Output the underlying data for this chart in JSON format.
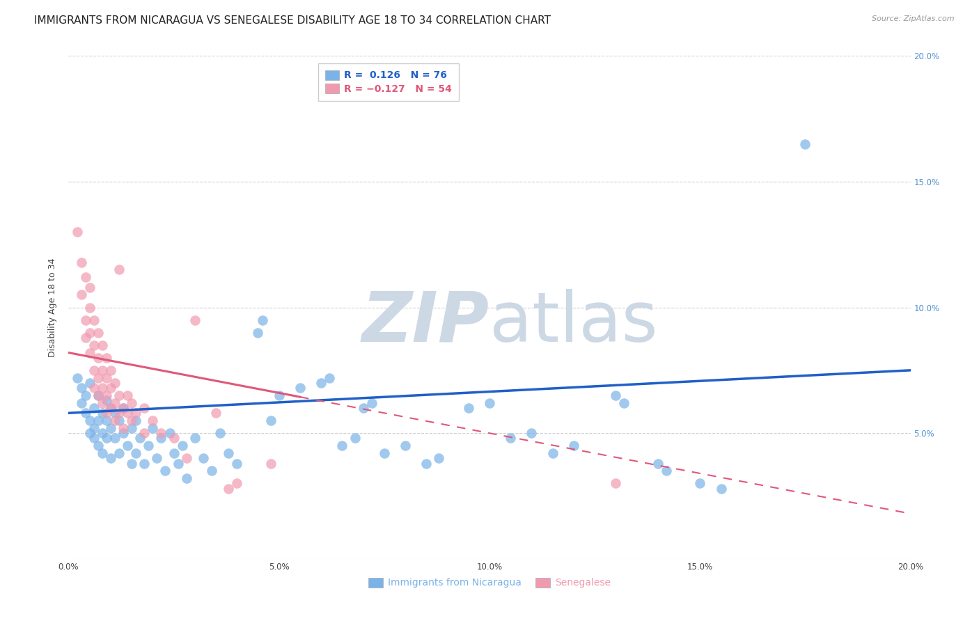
{
  "title": "IMMIGRANTS FROM NICARAGUA VS SENEGALESE DISABILITY AGE 18 TO 34 CORRELATION CHART",
  "source": "Source: ZipAtlas.com",
  "xlim": [
    0.0,
    0.2
  ],
  "ylim": [
    0.0,
    0.2
  ],
  "nicaragua_color": "#7ab3e8",
  "senegalese_color": "#f09ab0",
  "nicaragua_line_color": "#2060c8",
  "senegalese_line_color": "#e05878",
  "watermark_color": "#cdd8e5",
  "background_color": "#ffffff",
  "grid_color": "#cccccc",
  "title_fontsize": 11,
  "axis_label_fontsize": 9,
  "tick_fontsize": 8.5,
  "legend_fontsize": 10,
  "right_ytick_color": "#5090d0",
  "nicaragua_scatter": [
    [
      0.002,
      0.072
    ],
    [
      0.003,
      0.068
    ],
    [
      0.003,
      0.062
    ],
    [
      0.004,
      0.065
    ],
    [
      0.004,
      0.058
    ],
    [
      0.005,
      0.07
    ],
    [
      0.005,
      0.055
    ],
    [
      0.005,
      0.05
    ],
    [
      0.006,
      0.06
    ],
    [
      0.006,
      0.052
    ],
    [
      0.006,
      0.048
    ],
    [
      0.007,
      0.065
    ],
    [
      0.007,
      0.055
    ],
    [
      0.007,
      0.045
    ],
    [
      0.008,
      0.058
    ],
    [
      0.008,
      0.05
    ],
    [
      0.008,
      0.042
    ],
    [
      0.009,
      0.063
    ],
    [
      0.009,
      0.055
    ],
    [
      0.009,
      0.048
    ],
    [
      0.01,
      0.06
    ],
    [
      0.01,
      0.052
    ],
    [
      0.01,
      0.04
    ],
    [
      0.011,
      0.058
    ],
    [
      0.011,
      0.048
    ],
    [
      0.012,
      0.055
    ],
    [
      0.012,
      0.042
    ],
    [
      0.013,
      0.06
    ],
    [
      0.013,
      0.05
    ],
    [
      0.014,
      0.045
    ],
    [
      0.015,
      0.052
    ],
    [
      0.015,
      0.038
    ],
    [
      0.016,
      0.055
    ],
    [
      0.016,
      0.042
    ],
    [
      0.017,
      0.048
    ],
    [
      0.018,
      0.038
    ],
    [
      0.019,
      0.045
    ],
    [
      0.02,
      0.052
    ],
    [
      0.021,
      0.04
    ],
    [
      0.022,
      0.048
    ],
    [
      0.023,
      0.035
    ],
    [
      0.024,
      0.05
    ],
    [
      0.025,
      0.042
    ],
    [
      0.026,
      0.038
    ],
    [
      0.027,
      0.045
    ],
    [
      0.028,
      0.032
    ],
    [
      0.03,
      0.048
    ],
    [
      0.032,
      0.04
    ],
    [
      0.034,
      0.035
    ],
    [
      0.036,
      0.05
    ],
    [
      0.038,
      0.042
    ],
    [
      0.04,
      0.038
    ],
    [
      0.045,
      0.09
    ],
    [
      0.046,
      0.095
    ],
    [
      0.048,
      0.055
    ],
    [
      0.05,
      0.065
    ],
    [
      0.055,
      0.068
    ],
    [
      0.06,
      0.07
    ],
    [
      0.062,
      0.072
    ],
    [
      0.065,
      0.045
    ],
    [
      0.068,
      0.048
    ],
    [
      0.07,
      0.06
    ],
    [
      0.072,
      0.062
    ],
    [
      0.075,
      0.042
    ],
    [
      0.08,
      0.045
    ],
    [
      0.085,
      0.038
    ],
    [
      0.088,
      0.04
    ],
    [
      0.095,
      0.06
    ],
    [
      0.1,
      0.062
    ],
    [
      0.105,
      0.048
    ],
    [
      0.11,
      0.05
    ],
    [
      0.115,
      0.042
    ],
    [
      0.12,
      0.045
    ],
    [
      0.13,
      0.065
    ],
    [
      0.132,
      0.062
    ],
    [
      0.14,
      0.038
    ],
    [
      0.142,
      0.035
    ],
    [
      0.15,
      0.03
    ],
    [
      0.155,
      0.028
    ],
    [
      0.175,
      0.165
    ]
  ],
  "senegalese_scatter": [
    [
      0.002,
      0.13
    ],
    [
      0.003,
      0.118
    ],
    [
      0.003,
      0.105
    ],
    [
      0.004,
      0.112
    ],
    [
      0.004,
      0.095
    ],
    [
      0.004,
      0.088
    ],
    [
      0.005,
      0.108
    ],
    [
      0.005,
      0.1
    ],
    [
      0.005,
      0.09
    ],
    [
      0.005,
      0.082
    ],
    [
      0.006,
      0.095
    ],
    [
      0.006,
      0.085
    ],
    [
      0.006,
      0.075
    ],
    [
      0.006,
      0.068
    ],
    [
      0.007,
      0.09
    ],
    [
      0.007,
      0.08
    ],
    [
      0.007,
      0.072
    ],
    [
      0.007,
      0.065
    ],
    [
      0.008,
      0.085
    ],
    [
      0.008,
      0.075
    ],
    [
      0.008,
      0.068
    ],
    [
      0.008,
      0.062
    ],
    [
      0.009,
      0.08
    ],
    [
      0.009,
      0.072
    ],
    [
      0.009,
      0.065
    ],
    [
      0.009,
      0.058
    ],
    [
      0.01,
      0.075
    ],
    [
      0.01,
      0.068
    ],
    [
      0.01,
      0.06
    ],
    [
      0.011,
      0.07
    ],
    [
      0.011,
      0.062
    ],
    [
      0.011,
      0.055
    ],
    [
      0.012,
      0.115
    ],
    [
      0.012,
      0.065
    ],
    [
      0.012,
      0.058
    ],
    [
      0.013,
      0.06
    ],
    [
      0.013,
      0.052
    ],
    [
      0.014,
      0.065
    ],
    [
      0.014,
      0.058
    ],
    [
      0.015,
      0.062
    ],
    [
      0.015,
      0.055
    ],
    [
      0.016,
      0.058
    ],
    [
      0.018,
      0.06
    ],
    [
      0.018,
      0.05
    ],
    [
      0.02,
      0.055
    ],
    [
      0.022,
      0.05
    ],
    [
      0.025,
      0.048
    ],
    [
      0.028,
      0.04
    ],
    [
      0.03,
      0.095
    ],
    [
      0.035,
      0.058
    ],
    [
      0.038,
      0.028
    ],
    [
      0.04,
      0.03
    ],
    [
      0.048,
      0.038
    ],
    [
      0.13,
      0.03
    ]
  ]
}
